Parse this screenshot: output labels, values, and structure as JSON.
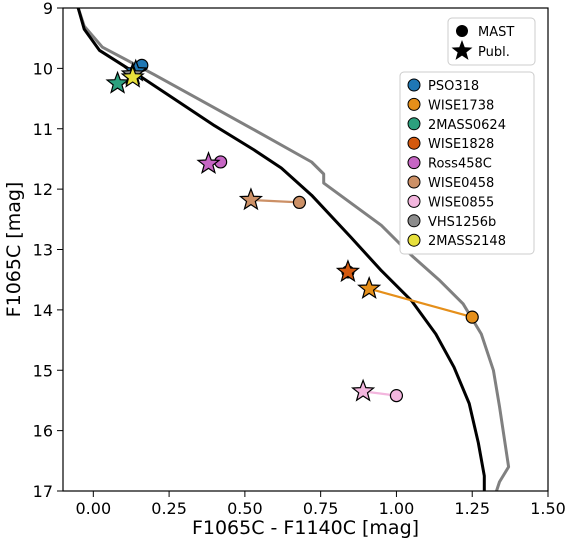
{
  "chart_data": {
    "type": "scatter",
    "xlabel": "F1065C - F1140C [mag]",
    "ylabel": "F1065C [mag]",
    "xlim": [
      -0.1,
      1.5
    ],
    "ylim": [
      17,
      9
    ],
    "y_inverted": true,
    "x_ticks": [
      0.0,
      0.25,
      0.5,
      0.75,
      1.0,
      1.25,
      1.5
    ],
    "x_tick_labels": [
      "0.00",
      "0.25",
      "0.50",
      "0.75",
      "1.00",
      "1.25",
      "1.50"
    ],
    "y_ticks": [
      9,
      10,
      11,
      12,
      13,
      14,
      15,
      16,
      17
    ],
    "y_tick_labels": [
      "9",
      "10",
      "11",
      "12",
      "13",
      "14",
      "15",
      "16",
      "17"
    ],
    "grid": false,
    "marker_legend": {
      "position": "top-right",
      "items": [
        {
          "marker": "circle",
          "label": "MAST"
        },
        {
          "marker": "star",
          "label": "Publ."
        }
      ]
    },
    "object_legend": {
      "position": "upper-right"
    },
    "lines": [
      {
        "style": "black-solid",
        "color": "#000000",
        "points": [
          [
            -0.05,
            9.0
          ],
          [
            -0.03,
            9.35
          ],
          [
            0.02,
            9.7
          ],
          [
            0.13,
            10.05
          ],
          [
            0.25,
            10.45
          ],
          [
            0.4,
            10.95
          ],
          [
            0.53,
            11.35
          ],
          [
            0.62,
            11.65
          ],
          [
            0.72,
            12.1
          ],
          [
            0.85,
            12.8
          ],
          [
            0.95,
            13.35
          ],
          [
            1.05,
            13.85
          ],
          [
            1.13,
            14.4
          ],
          [
            1.19,
            14.95
          ],
          [
            1.24,
            15.55
          ],
          [
            1.27,
            16.2
          ],
          [
            1.29,
            16.75
          ],
          [
            1.29,
            17.0
          ]
        ]
      },
      {
        "style": "gray-solid",
        "color": "#808080",
        "points": [
          [
            -0.05,
            9.0
          ],
          [
            -0.03,
            9.3
          ],
          [
            0.03,
            9.65
          ],
          [
            0.2,
            10.1
          ],
          [
            0.38,
            10.6
          ],
          [
            0.56,
            11.1
          ],
          [
            0.72,
            11.55
          ],
          [
            0.76,
            11.75
          ],
          [
            0.76,
            11.9
          ],
          [
            0.95,
            12.6
          ],
          [
            1.05,
            13.1
          ],
          [
            1.14,
            13.5
          ],
          [
            1.22,
            13.9
          ],
          [
            1.28,
            14.4
          ],
          [
            1.32,
            15.0
          ],
          [
            1.34,
            15.6
          ],
          [
            1.37,
            16.6
          ],
          [
            1.34,
            16.85
          ],
          [
            1.33,
            17.0
          ]
        ]
      }
    ],
    "series": [
      {
        "name": "PSO318",
        "color": "#1f77b4",
        "mast": [
          0.16,
          9.95
        ],
        "publ": [
          0.14,
          10.05
        ]
      },
      {
        "name": "WISE1738",
        "color": "#e58f1a",
        "mast": [
          1.25,
          14.12
        ],
        "publ": [
          0.91,
          13.65
        ]
      },
      {
        "name": "2MASS0624",
        "color": "#2ca07e",
        "mast": null,
        "publ": [
          0.08,
          10.25
        ]
      },
      {
        "name": "WISE1828",
        "color": "#d3590f",
        "mast": [
          0.84,
          13.37
        ],
        "publ": [
          0.84,
          13.37
        ]
      },
      {
        "name": "Ross458C",
        "color": "#c666c4",
        "mast": [
          0.42,
          11.55
        ],
        "publ": [
          0.38,
          11.58
        ]
      },
      {
        "name": "WISE0458",
        "color": "#cc9066",
        "mast": [
          0.68,
          12.22
        ],
        "publ": [
          0.52,
          12.18
        ]
      },
      {
        "name": "WISE0855",
        "color": "#f3b6de",
        "mast": [
          1.0,
          15.42
        ],
        "publ": [
          0.89,
          15.35
        ]
      },
      {
        "name": "VHS1256b",
        "color": "#8c8c8c",
        "mast": null,
        "publ": [
          0.13,
          10.1
        ]
      },
      {
        "name": "2MASS2148",
        "color": "#e7e03c",
        "mast": null,
        "publ": [
          0.13,
          10.15
        ]
      }
    ]
  }
}
